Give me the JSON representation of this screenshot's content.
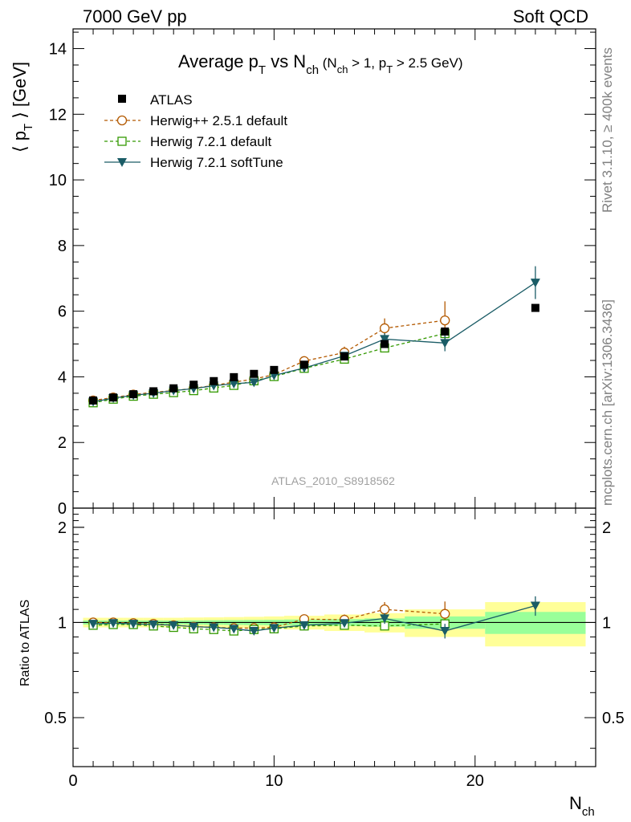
{
  "header": {
    "left": "7000 GeV pp",
    "right": "Soft QCD"
  },
  "side_labels": {
    "rivet": "Rivet 3.1.10, ≥ 400k events",
    "mcplots": "mcplots.cern.ch [arXiv:1306.3436]"
  },
  "colors": {
    "atlas": "#000000",
    "herwigpp": "#b35900",
    "herwig721": "#339900",
    "softtune": "#1a5c66",
    "band_outer": "#ffff99",
    "band_inner": "#99ff99"
  },
  "chart_data": [
    {
      "type": "line",
      "panel": "main",
      "title": "Average pT vs Nch (Nch > 1, pT > 2.5 GeV)",
      "title_parts": {
        "main": "Average p",
        "sub_t": "T",
        "vs": " vs N",
        "sub_ch": "ch",
        "cond_open": " (N",
        "cond_ch": "ch",
        "cond_mid": " > 1, p",
        "cond_t": "T",
        "cond_close": " > 2.5 GeV)"
      },
      "ylabel": "⟨ pT ⟩ [GeV]",
      "ylabel_parts": {
        "open": "⟨ p",
        "sub": "T",
        "close": " ⟩ [GeV]"
      },
      "watermark": "ATLAS_2010_S8918562",
      "xlim": [
        0,
        26
      ],
      "ylim": [
        0,
        14.6
      ],
      "yticks": [
        0,
        2,
        4,
        6,
        8,
        10,
        12,
        14
      ],
      "legend_position": "top-left",
      "series": [
        {
          "name": "ATLAS",
          "marker": "square-filled",
          "x": [
            1,
            2,
            3,
            4,
            5,
            6,
            7,
            8,
            9,
            10,
            11.5,
            13.5,
            15.5,
            18.5,
            23
          ],
          "y": [
            3.28,
            3.37,
            3.47,
            3.56,
            3.65,
            3.76,
            3.87,
            3.99,
            4.09,
            4.21,
            4.37,
            4.62,
            5.0,
            5.38,
            6.1
          ]
        },
        {
          "name": "Herwig++ 2.5.1 default",
          "marker": "circle-open",
          "x": [
            1,
            2,
            3,
            4,
            5,
            6,
            7,
            8,
            9,
            10,
            11.5,
            13.5,
            15.5,
            18.5
          ],
          "y": [
            3.28,
            3.37,
            3.46,
            3.53,
            3.58,
            3.65,
            3.74,
            3.84,
            3.93,
            4.07,
            4.48,
            4.74,
            5.48,
            5.72
          ],
          "err": [
            0,
            0,
            0,
            0,
            0,
            0,
            0,
            0,
            0,
            0,
            0.08,
            0.18,
            0.3,
            0.58
          ]
        },
        {
          "name": "Herwig 7.2.1 default",
          "marker": "square-open",
          "x": [
            1,
            2,
            3,
            4,
            5,
            6,
            7,
            8,
            9,
            10,
            11.5,
            13.5,
            15.5,
            18.5
          ],
          "y": [
            3.21,
            3.32,
            3.41,
            3.47,
            3.52,
            3.58,
            3.66,
            3.74,
            3.88,
            4.01,
            4.26,
            4.54,
            4.88,
            5.32
          ],
          "err": [
            0,
            0,
            0,
            0,
            0,
            0,
            0,
            0,
            0,
            0,
            0.06,
            0.1,
            0.12,
            0.18
          ]
        },
        {
          "name": "Herwig 7.2.1 softTune",
          "marker": "triangle-down-filled",
          "x": [
            1,
            2,
            3,
            4,
            5,
            6,
            7,
            8,
            9,
            10,
            11.5,
            13.5,
            15.5,
            18.5,
            23
          ],
          "y": [
            3.24,
            3.35,
            3.44,
            3.5,
            3.58,
            3.64,
            3.73,
            3.79,
            3.83,
            4.04,
            4.27,
            4.64,
            5.15,
            5.03,
            6.87
          ],
          "err": [
            0,
            0,
            0,
            0,
            0,
            0,
            0,
            0,
            0,
            0,
            0.06,
            0.1,
            0.18,
            0.25,
            0.5
          ]
        }
      ]
    },
    {
      "type": "line",
      "panel": "ratio",
      "ylabel": "Ratio to ATLAS",
      "xlabel": "Nch",
      "xlabel_parts": {
        "main": "N",
        "sub": "ch"
      },
      "xlim": [
        0,
        26
      ],
      "ylim": [
        0.35,
        2.3
      ],
      "yticks": [
        0.5,
        1,
        2
      ],
      "ytick_labels": [
        "0.5",
        "1",
        "2"
      ],
      "xticks": [
        0,
        10,
        20
      ],
      "xtick_labels": [
        "0",
        "10",
        "20"
      ],
      "bands": {
        "x_edges": [
          0.5,
          1.5,
          2.5,
          3.5,
          4.5,
          5.5,
          6.5,
          7.5,
          8.5,
          9.5,
          10.5,
          12.5,
          14.5,
          16.5,
          20.5,
          25.5
        ],
        "outer_lo": [
          0.965,
          0.965,
          0.965,
          0.965,
          0.965,
          0.963,
          0.962,
          0.96,
          0.958,
          0.955,
          0.95,
          0.94,
          0.93,
          0.9,
          0.84
        ],
        "outer_hi": [
          1.035,
          1.035,
          1.035,
          1.035,
          1.035,
          1.037,
          1.038,
          1.04,
          1.042,
          1.045,
          1.05,
          1.06,
          1.07,
          1.1,
          1.16
        ],
        "inner_lo": [
          0.985,
          0.985,
          0.985,
          0.985,
          0.985,
          0.984,
          0.983,
          0.982,
          0.981,
          0.98,
          0.978,
          0.975,
          0.97,
          0.955,
          0.92
        ],
        "inner_hi": [
          1.015,
          1.015,
          1.015,
          1.015,
          1.015,
          1.016,
          1.017,
          1.018,
          1.019,
          1.02,
          1.022,
          1.025,
          1.03,
          1.045,
          1.08
        ]
      },
      "series": [
        {
          "name": "Herwig++ 2.5.1 default",
          "marker": "circle-open",
          "x": [
            1,
            2,
            3,
            4,
            5,
            6,
            7,
            8,
            9,
            10,
            11.5,
            13.5,
            15.5,
            18.5
          ],
          "y": [
            1.0,
            1.0,
            0.995,
            0.99,
            0.98,
            0.97,
            0.965,
            0.96,
            0.96,
            0.965,
            1.025,
            1.02,
            1.1,
            1.065
          ],
          "err": [
            0,
            0,
            0,
            0,
            0,
            0,
            0,
            0,
            0,
            0,
            0.02,
            0.04,
            0.06,
            0.1
          ]
        },
        {
          "name": "Herwig 7.2.1 default",
          "marker": "square-open",
          "x": [
            1,
            2,
            3,
            4,
            5,
            6,
            7,
            8,
            9,
            10,
            11.5,
            13.5,
            15.5,
            18.5
          ],
          "y": [
            0.98,
            0.985,
            0.985,
            0.975,
            0.965,
            0.955,
            0.95,
            0.94,
            0.95,
            0.955,
            0.975,
            0.98,
            0.975,
            0.99
          ],
          "err": [
            0,
            0,
            0,
            0,
            0,
            0,
            0,
            0,
            0,
            0,
            0.01,
            0.02,
            0.025,
            0.035
          ]
        },
        {
          "name": "Herwig 7.2.1 softTune",
          "marker": "triangle-down-filled",
          "x": [
            1,
            2,
            3,
            4,
            5,
            6,
            7,
            8,
            9,
            10,
            11.5,
            13.5,
            15.5,
            18.5,
            23
          ],
          "y": [
            0.99,
            0.995,
            0.99,
            0.985,
            0.98,
            0.97,
            0.965,
            0.955,
            0.94,
            0.96,
            0.98,
            0.995,
            1.03,
            0.94,
            1.13
          ],
          "err": [
            0,
            0,
            0,
            0,
            0,
            0,
            0,
            0,
            0,
            0,
            0.015,
            0.02,
            0.04,
            0.05,
            0.08
          ]
        }
      ]
    }
  ]
}
